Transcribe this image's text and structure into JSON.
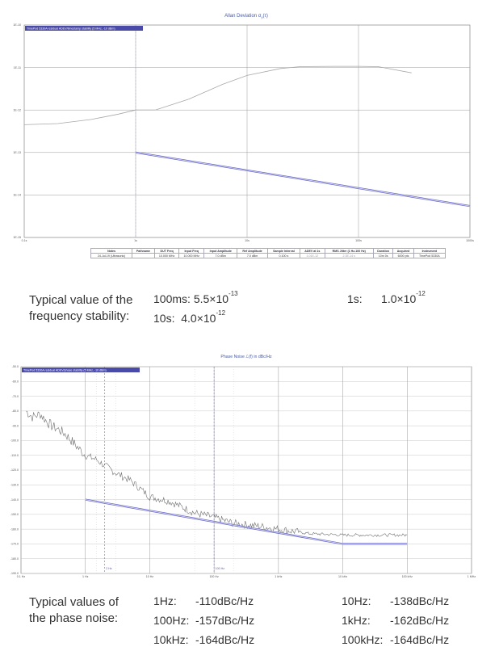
{
  "charts": {
    "adev": {
      "title_main": "Allan Deviation σ",
      "title_sub": "y",
      "title_tail": "(τ)",
      "legend": "TimePod 5330A residual ADEV/timestamp stability (5 MHz, -10 dBm)",
      "y_ticks": [
        "1E-10",
        "1E-11",
        "1E-12",
        "1E-13",
        "1E-14",
        "1E-15"
      ],
      "x_ticks": [
        "0.1s",
        "1s",
        "10s",
        "100s",
        "1000s"
      ]
    },
    "pn": {
      "title": "Phase Noise ℒ(f) in dBc/Hz",
      "legend": "TimePod 5330A residual ADEV/phase stability (5 MHz, -10 dBm)",
      "y_ticks": [
        "-50.0",
        "-60.0",
        "-70.0",
        "-80.0",
        "-90.0",
        "-100.0",
        "-110.0",
        "-120.0",
        "-130.0",
        "-140.0",
        "-150.0",
        "-160.0",
        "-170.0",
        "-180.0",
        "-190.0"
      ],
      "x_ticks": [
        "0.1 Hz",
        "1 Hz",
        "10 Hz",
        "100 Hz",
        "1 kHz",
        "10 kHz",
        "100 kHz",
        "1 MHz"
      ],
      "marker_labels": [
        "2 Hz",
        "100 Hz"
      ]
    }
  },
  "table": {
    "headers": [
      "Notes",
      "Pathname",
      "DUT Freq",
      "Input Freq",
      "Input Amplitude",
      "Ref Amplitude",
      "Sample Interval",
      "ADEV at 1s",
      "RMS Jitter (1 Hz-100 Hz)",
      "Duration",
      "Acquired",
      "Instrument"
    ],
    "row": [
      "24-Jul-19 (Ultrasonic)",
      "",
      "10.000 MHz",
      "10.000 MHz",
      "7.0 dBm",
      "7.0 dBm",
      "0.100 s",
      "1.01E-12",
      "2.3E-14 s",
      "10m 0s",
      "6000 pts",
      "TimePod 5330A"
    ]
  },
  "freq_stability": {
    "label": "Typical value of the frequency stability:",
    "items": [
      {
        "name": "100ms:",
        "mant": "5.5×10",
        "exp": "-13"
      },
      {
        "name": "1s:",
        "mant": "1.0×10",
        "exp": "-12"
      },
      {
        "name": "10s:",
        "mant": "4.0×10",
        "exp": "-12"
      }
    ]
  },
  "phase_noise": {
    "label": "Typical values of the phase noise:",
    "items": [
      {
        "name": "1Hz:",
        "value": "-110dBc/Hz"
      },
      {
        "name": "10Hz:",
        "value": "-138dBc/Hz"
      },
      {
        "name": "100Hz:",
        "value": "-157dBc/Hz"
      },
      {
        "name": "1kHz:",
        "value": "-162dBc/Hz"
      },
      {
        "name": "10kHz:",
        "value": "-164dBc/Hz"
      },
      {
        "name": "100kHz:",
        "value": "-164dBc/Hz"
      }
    ]
  },
  "chart_data": [
    {
      "type": "line",
      "title": "Allan Deviation σy(τ)",
      "xlabel": "",
      "ylabel": "",
      "x_scale": "log",
      "y_scale": "log",
      "xlim": [
        0.1,
        1000
      ],
      "ylim": [
        1e-15,
        1e-10
      ],
      "grid": true,
      "legend": "top-left",
      "series": [
        {
          "name": "",
          "color": "#a8a8a8",
          "x": [
            0.1,
            0.2,
            0.4,
            0.7,
            1.0,
            1.5,
            3,
            6,
            10,
            20,
            30,
            60,
            100,
            150,
            300
          ],
          "y": [
            4.5e-13,
            4.8e-13,
            6e-13,
            8e-13,
            1e-12,
            1e-12,
            1.8e-12,
            4e-12,
            6.5e-12,
            9.5e-12,
            1.05e-11,
            1.07e-11,
            1.07e-11,
            1.05e-11,
            7.5e-12
          ]
        },
        {
          "name": "",
          "color": "#6a6ac8",
          "x": [
            1,
            1000
          ],
          "y": [
            1e-13,
            5.5e-15
          ]
        }
      ]
    },
    {
      "type": "line",
      "title": "Phase Noise ℒ(f) in dBc/Hz",
      "xlabel": "",
      "ylabel": "",
      "x_scale": "log",
      "xlim": [
        0.1,
        1000000
      ],
      "ylim": [
        -190,
        -50
      ],
      "grid": true,
      "legend": "top-left",
      "series": [
        {
          "name": "",
          "color": "#707070",
          "x": [
            0.12,
            0.15,
            0.2,
            0.25,
            0.3,
            0.4,
            0.5,
            0.7,
            1.0,
            1.5,
            2,
            3,
            5,
            10,
            20,
            50,
            100,
            200,
            500,
            1000,
            3000,
            10000,
            30000,
            100000
          ],
          "y": [
            -80,
            -84,
            -82,
            -87,
            -90,
            -93,
            -96,
            -103,
            -110,
            -113,
            -117,
            -122,
            -127,
            -138,
            -141,
            -149,
            -152,
            -156,
            -158,
            -160,
            -163,
            -164,
            -164,
            -164
          ]
        },
        {
          "name": "",
          "color": "#6a6ac8",
          "x": [
            1,
            10000,
            100000
          ],
          "y": [
            -140,
            -170,
            -170
          ]
        }
      ]
    }
  ]
}
